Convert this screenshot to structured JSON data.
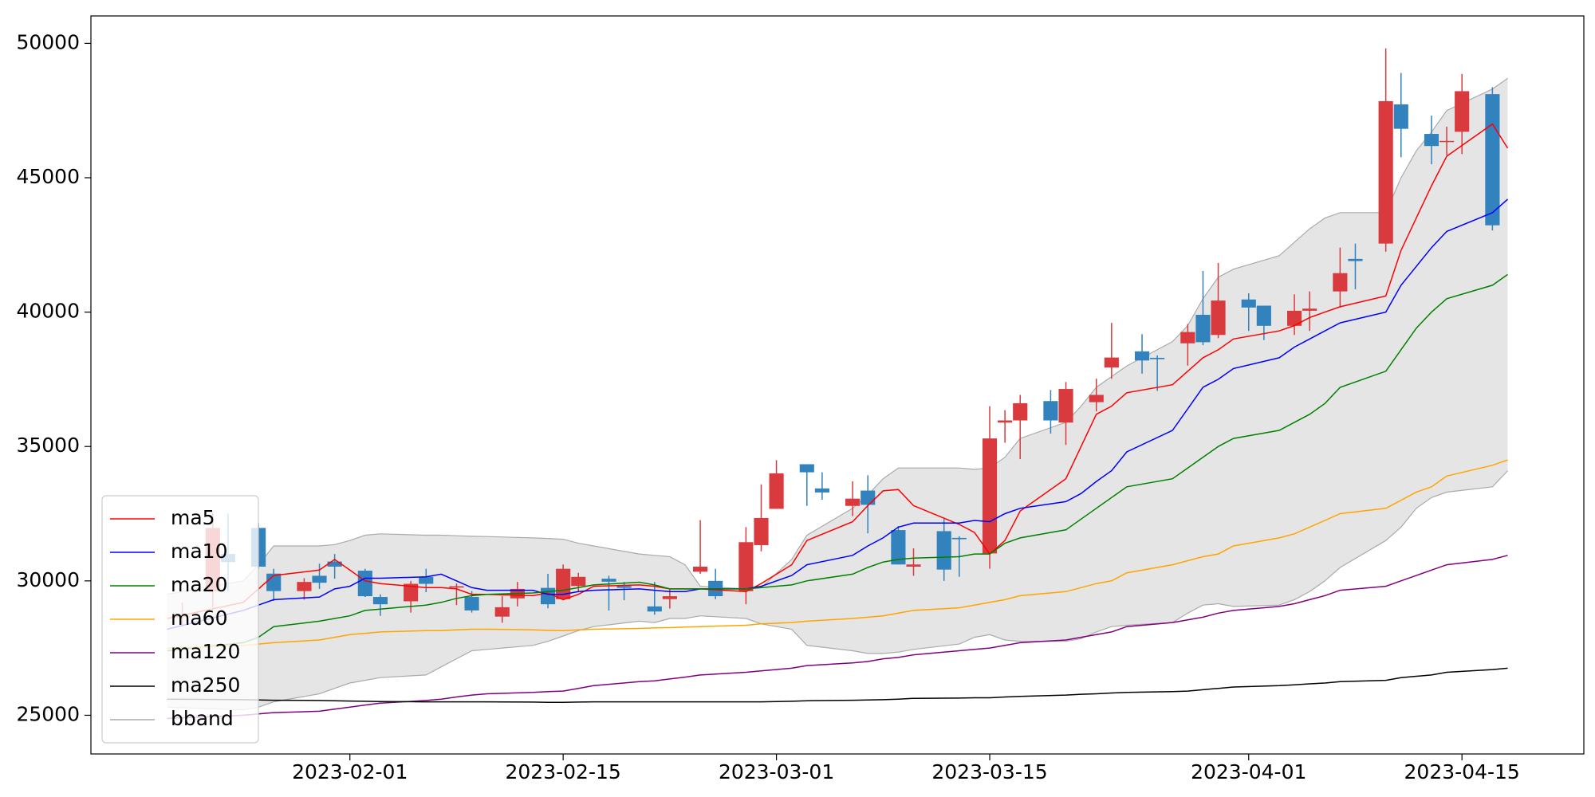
{
  "chart_data": {
    "type": "candlestick",
    "xlim": [
      "2023-01-15",
      "2023-04-23"
    ],
    "xticks": [
      "2023-02-01",
      "2023-02-15",
      "2023-03-01",
      "2023-03-15",
      "2023-04-01",
      "2023-04-15"
    ],
    "ylim": [
      23560,
      51020
    ],
    "yticks": [
      25000,
      30000,
      35000,
      40000,
      45000,
      50000
    ],
    "legend": "lower left",
    "candles": {
      "up_color": "#d83a3e",
      "down_color": "#3182bd",
      "x": [
        "2023-01-21",
        "2023-01-23",
        "2023-01-24",
        "2023-01-26",
        "2023-01-27",
        "2023-01-29",
        "2023-01-30",
        "2023-01-31",
        "2023-02-02",
        "2023-02-03",
        "2023-02-05",
        "2023-02-06",
        "2023-02-08",
        "2023-02-09",
        "2023-02-11",
        "2023-02-12",
        "2023-02-14",
        "2023-02-15",
        "2023-02-16",
        "2023-02-18",
        "2023-02-19",
        "2023-02-21",
        "2023-02-22",
        "2023-02-24",
        "2023-02-25",
        "2023-02-27",
        "2023-02-28",
        "2023-03-01",
        "2023-03-03",
        "2023-03-04",
        "2023-03-06",
        "2023-03-07",
        "2023-03-09",
        "2023-03-10",
        "2023-03-12",
        "2023-03-13",
        "2023-03-15",
        "2023-03-16",
        "2023-03-17",
        "2023-03-19",
        "2023-03-20",
        "2023-03-22",
        "2023-03-23",
        "2023-03-25",
        "2023-03-26",
        "2023-03-28",
        "2023-03-29",
        "2023-03-30",
        "2023-04-01",
        "2023-04-02",
        "2023-04-04",
        "2023-04-05",
        "2023-04-07",
        "2023-04-08",
        "2023-04-10",
        "2023-04-11",
        "2023-04-13",
        "2023-04-14",
        "2023-04-15",
        "2023-04-17"
      ],
      "open": [
        28650,
        29620,
        31000,
        31970,
        30270,
        29620,
        30190,
        30720,
        30380,
        29400,
        29240,
        30150,
        29750,
        29400,
        28670,
        29350,
        29740,
        29320,
        29810,
        30080,
        29810,
        29050,
        29320,
        30340,
        30000,
        29620,
        31330,
        32680,
        34340,
        33440,
        32790,
        33360,
        31890,
        30530,
        31850,
        31600,
        31020,
        35890,
        35970,
        36690,
        35890,
        36650,
        37940,
        38540,
        38300,
        38840,
        39900,
        39150,
        40470,
        40240,
        39490,
        40050,
        40770,
        41980,
        42550,
        47730,
        46630,
        46330,
        46710,
        48110
      ],
      "high": [
        29200,
        32530,
        32500,
        32150,
        30450,
        30100,
        30640,
        31000,
        30450,
        29500,
        30000,
        30450,
        29900,
        29620,
        29430,
        29960,
        30260,
        30610,
        30300,
        30190,
        29960,
        29960,
        29700,
        32260,
        30450,
        32000,
        33590,
        34490,
        34340,
        34040,
        33700,
        33930,
        32040,
        31210,
        32300,
        31660,
        36500,
        36350,
        36920,
        37100,
        37400,
        37520,
        39600,
        39180,
        38390,
        39560,
        41530,
        41830,
        40700,
        40240,
        40660,
        40770,
        42400,
        42550,
        49810,
        48900,
        47310,
        46900,
        48860,
        48370
      ],
      "low": [
        28300,
        29000,
        29600,
        30450,
        29250,
        29300,
        29700,
        30080,
        29400,
        28700,
        28820,
        29580,
        29100,
        28820,
        28440,
        29050,
        28980,
        29320,
        29580,
        28900,
        29280,
        28740,
        28970,
        30260,
        29320,
        29130,
        31100,
        32680,
        32790,
        33020,
        32410,
        31770,
        30610,
        30190,
        30000,
        30150,
        30450,
        35140,
        34530,
        35480,
        35060,
        36310,
        37520,
        37710,
        37070,
        38010,
        38770,
        39030,
        39300,
        38960,
        39150,
        39300,
        40170,
        40850,
        42250,
        45760,
        45500,
        45840,
        45880,
        43040
      ],
      "close": [
        28700,
        31970,
        30700,
        30530,
        29620,
        29960,
        29930,
        30530,
        29430,
        29130,
        29890,
        29890,
        29800,
        28900,
        29020,
        29700,
        29130,
        30450,
        30150,
        29970,
        29740,
        28860,
        29430,
        30530,
        29430,
        31440,
        32340,
        34000,
        34040,
        33290,
        33060,
        32830,
        30610,
        30610,
        30420,
        31550,
        35300,
        35970,
        36610,
        35970,
        37140,
        36920,
        38310,
        38200,
        38250,
        39260,
        38880,
        40430,
        40170,
        39490,
        40050,
        40130,
        41450,
        41900,
        47850,
        46820,
        46180,
        46370,
        48220,
        43230
      ]
    },
    "x": [
      "2023-01-20",
      "2023-01-25",
      "2023-01-26",
      "2023-01-27",
      "2023-01-30",
      "2023-01-31",
      "2023-02-01",
      "2023-02-02",
      "2023-02-03",
      "2023-02-06",
      "2023-02-07",
      "2023-02-08",
      "2023-02-09",
      "2023-02-10",
      "2023-02-13",
      "2023-02-14",
      "2023-02-15",
      "2023-02-16",
      "2023-02-17",
      "2023-02-20",
      "2023-02-21",
      "2023-02-22",
      "2023-02-23",
      "2023-02-24",
      "2023-02-27",
      "2023-02-28",
      "2023-03-02",
      "2023-03-03",
      "2023-03-06",
      "2023-03-07",
      "2023-03-08",
      "2023-03-09",
      "2023-03-10",
      "2023-03-13",
      "2023-03-14",
      "2023-03-15",
      "2023-03-16",
      "2023-03-17",
      "2023-03-20",
      "2023-03-21",
      "2023-03-22",
      "2023-03-23",
      "2023-03-24",
      "2023-03-27",
      "2023-03-28",
      "2023-03-29",
      "2023-03-30",
      "2023-03-31",
      "2023-04-03",
      "2023-04-04",
      "2023-04-05",
      "2023-04-06",
      "2023-04-07",
      "2023-04-10",
      "2023-04-11",
      "2023-04-12",
      "2023-04-13",
      "2023-04-14",
      "2023-04-17",
      "2023-04-18"
    ],
    "series": [
      {
        "name": "ma5",
        "color": "#ff0000",
        "values": [
          28600,
          29200,
          29700,
          30200,
          30400,
          30800,
          30400,
          30000,
          29900,
          29750,
          29750,
          29700,
          29500,
          29500,
          29450,
          29550,
          29300,
          29500,
          29800,
          29850,
          29800,
          29700,
          29700,
          29700,
          29600,
          29900,
          30600,
          31500,
          32200,
          32800,
          33350,
          33400,
          32800,
          32100,
          31800,
          31000,
          31500,
          32600,
          33800,
          35000,
          36200,
          36500,
          37000,
          37300,
          37800,
          38300,
          38600,
          39000,
          39300,
          39500,
          39800,
          40000,
          40200,
          40600,
          42300,
          43500,
          44700,
          45800,
          47000,
          46100
        ]
      },
      {
        "name": "ma10",
        "color": "#0000ff",
        "values": [
          28200,
          28900,
          29100,
          29300,
          29400,
          29700,
          29800,
          30100,
          30100,
          30150,
          30250,
          30000,
          29750,
          29650,
          29650,
          29500,
          29500,
          29600,
          29650,
          29700,
          29650,
          29600,
          29600,
          29700,
          29700,
          29800,
          30200,
          30600,
          30950,
          31300,
          31600,
          32000,
          32150,
          32150,
          32250,
          32200,
          32500,
          32700,
          32950,
          33250,
          33700,
          34100,
          34800,
          35600,
          36400,
          37200,
          37500,
          37900,
          38300,
          38700,
          39000,
          39300,
          39600,
          40000,
          41000,
          41700,
          42400,
          43000,
          43700,
          44200
        ]
      },
      {
        "name": "ma20",
        "color": "#008000",
        "values": [
          27400,
          27700,
          27900,
          28300,
          28500,
          28600,
          28700,
          28900,
          28950,
          29100,
          29200,
          29350,
          29450,
          29500,
          29550,
          29600,
          29650,
          29750,
          29850,
          29950,
          29850,
          29700,
          29700,
          29700,
          29700,
          29750,
          29850,
          30000,
          30250,
          30500,
          30700,
          30800,
          30850,
          30900,
          31000,
          31000,
          31400,
          31600,
          31900,
          32300,
          32700,
          33100,
          33500,
          33800,
          34200,
          34600,
          35000,
          35300,
          35600,
          35900,
          36200,
          36600,
          37200,
          37800,
          38600,
          39400,
          40000,
          40500,
          41000,
          41400
        ]
      },
      {
        "name": "ma60",
        "color": "#ffa500",
        "values": [
          27500,
          27600,
          27650,
          27700,
          27800,
          27900,
          28000,
          28050,
          28100,
          28150,
          28150,
          28180,
          28200,
          28200,
          28180,
          28160,
          28150,
          28180,
          28200,
          28230,
          28250,
          28260,
          28280,
          28300,
          28350,
          28400,
          28450,
          28500,
          28600,
          28650,
          28700,
          28800,
          28900,
          29000,
          29100,
          29200,
          29300,
          29450,
          29600,
          29750,
          29900,
          30000,
          30300,
          30600,
          30750,
          30900,
          31000,
          31300,
          31600,
          31750,
          32000,
          32250,
          32500,
          32700,
          33000,
          33300,
          33500,
          33900,
          34300,
          34500
        ]
      },
      {
        "name": "ma120",
        "color": "#800080",
        "values": [
          24880,
          25000,
          25050,
          25100,
          25150,
          25230,
          25300,
          25380,
          25450,
          25550,
          25600,
          25680,
          25750,
          25800,
          25850,
          25880,
          25900,
          26000,
          26100,
          26250,
          26280,
          26350,
          26420,
          26500,
          26600,
          26650,
          26750,
          26850,
          26950,
          27000,
          27100,
          27150,
          27250,
          27400,
          27450,
          27500,
          27600,
          27700,
          27800,
          27900,
          28000,
          28100,
          28300,
          28450,
          28550,
          28650,
          28800,
          28900,
          29050,
          29150,
          29300,
          29450,
          29650,
          29800,
          30000,
          30200,
          30400,
          30600,
          30800,
          30950
        ]
      },
      {
        "name": "ma250",
        "color": "#000000",
        "values": [
          25600,
          25580,
          25570,
          25560,
          25550,
          25540,
          25530,
          25520,
          25510,
          25500,
          25500,
          25500,
          25500,
          25500,
          25490,
          25480,
          25480,
          25490,
          25500,
          25500,
          25500,
          25500,
          25500,
          25500,
          25500,
          25500,
          25520,
          25540,
          25560,
          25570,
          25580,
          25600,
          25630,
          25640,
          25650,
          25650,
          25680,
          25700,
          25750,
          25780,
          25800,
          25830,
          25850,
          25880,
          25900,
          25950,
          26000,
          26050,
          26100,
          26130,
          26170,
          26200,
          26250,
          26300,
          26400,
          26450,
          26500,
          26600,
          26700,
          26750
        ]
      },
      {
        "name": "bband",
        "color": "#aaaaaa",
        "fill": "#e5e5e5",
        "upper": [
          29500,
          30000,
          30600,
          31300,
          31300,
          31350,
          31500,
          31700,
          31750,
          31700,
          31700,
          31680,
          31660,
          31650,
          31600,
          31580,
          31550,
          31400,
          31300,
          31000,
          30950,
          30900,
          30600,
          29800,
          29700,
          29750,
          30800,
          31700,
          32700,
          33200,
          33800,
          34200,
          34200,
          34200,
          34150,
          34200,
          34600,
          35300,
          35900,
          36500,
          37200,
          37600,
          38000,
          38900,
          39500,
          40500,
          41300,
          41600,
          42100,
          42600,
          43100,
          43500,
          43700,
          43700,
          45000,
          46000,
          46700,
          47500,
          48300,
          48700
        ],
        "lower": [
          25300,
          25200,
          25300,
          25500,
          25800,
          26000,
          26200,
          26300,
          26400,
          26500,
          26800,
          27100,
          27400,
          27450,
          27600,
          27750,
          27950,
          28150,
          28300,
          28500,
          28450,
          28600,
          28600,
          28700,
          28600,
          28400,
          28200,
          27600,
          27400,
          27300,
          27300,
          27350,
          27450,
          27650,
          27900,
          28000,
          27800,
          27750,
          27750,
          27850,
          28100,
          28300,
          28350,
          28450,
          28800,
          29100,
          29150,
          29050,
          29100,
          29300,
          29600,
          30000,
          30500,
          31500,
          32000,
          32700,
          33100,
          33300,
          33500,
          34100
        ]
      }
    ]
  }
}
